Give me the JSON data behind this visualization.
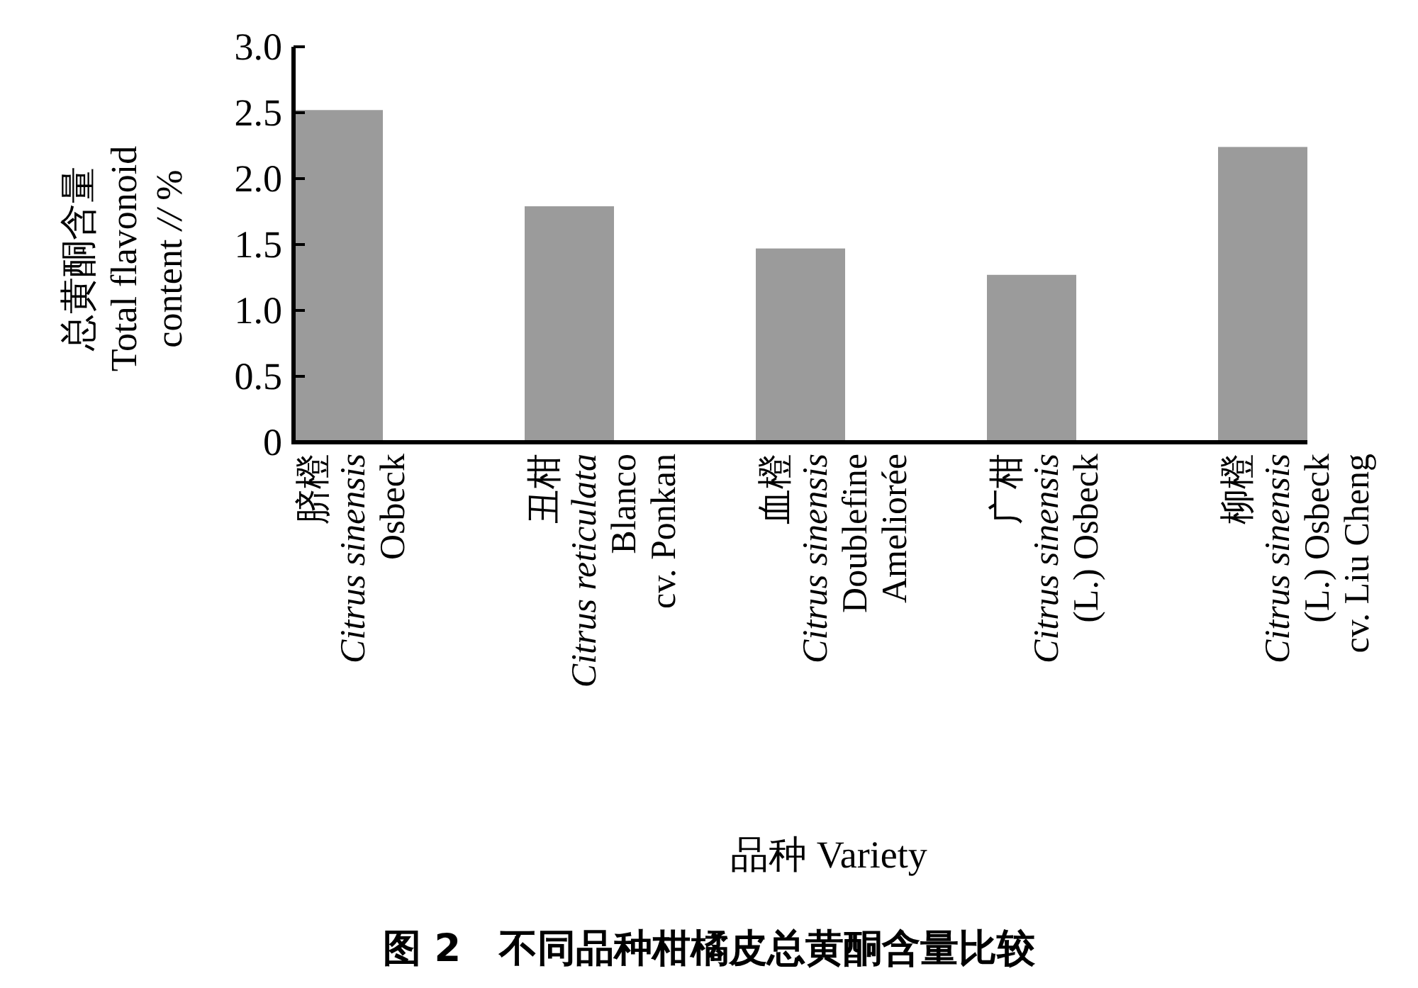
{
  "chart_data": {
    "type": "bar",
    "title": "图 2　不同品种柑橘皮总黄酮含量比较",
    "xlabel": "品种 Variety",
    "ylabel": "总黄酮含量\nTotal flavonoid\ncontent *//* %",
    "categories": [
      "脐橙\n*Citrus sinensis*\nOsbeck",
      "丑柑\n*Citrus reticulata*\nBlanco\ncv. Ponkan",
      "血橙\n*Citrus sinensis*\nDoublefine\nAmeliorée",
      "广柑\n*Citrus sinensis*\n(L.) Osbeck",
      "柳橙\n*Citrus sinensis*\n(L.) Osbeck\ncv. Liu Cheng"
    ],
    "values": [
      2.52,
      1.79,
      1.47,
      1.27,
      2.24
    ],
    "color": "#9b9b9b",
    "ylim": [
      0,
      3
    ],
    "yticks": [
      0,
      {
        "value": 0.5,
        "label": "0.5"
      },
      {
        "value": 1,
        "label": "1.0"
      },
      {
        "value": 1.5,
        "label": "1.5"
      },
      {
        "value": 2,
        "label": "2.0"
      },
      {
        "value": 2.5,
        "label": "2.5"
      },
      {
        "value": 3,
        "label": "3.0"
      }
    ],
    "grid": false
  }
}
